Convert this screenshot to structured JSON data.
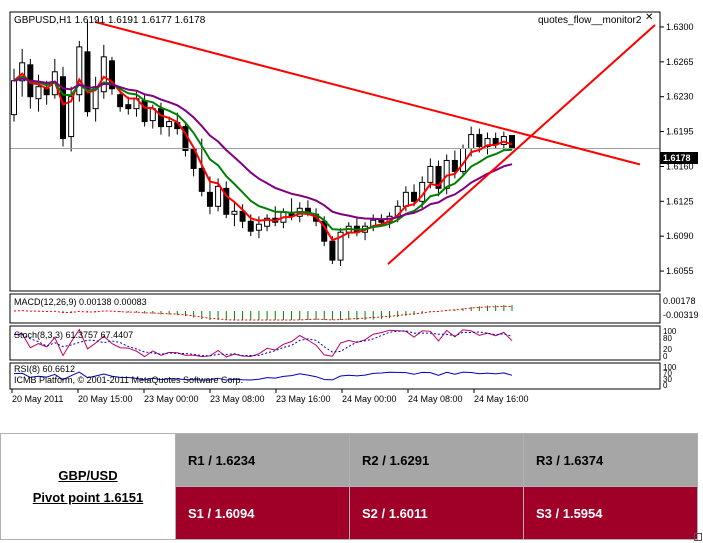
{
  "chart": {
    "header": "GBPUSD,H1  1.6191 1.6191 1.6177 1.6178",
    "indicator_label": "quotes_flow__monitor2",
    "close_icon": "close-icon",
    "current_price": "1.6178",
    "price_ticks": [
      "1.6300",
      "1.6265",
      "1.6230",
      "1.6195",
      "1.6160",
      "1.6125",
      "1.6090",
      "1.6055"
    ],
    "time_ticks": [
      "20 May 2011",
      "20 May 15:00",
      "23 May 00:00",
      "23 May 08:00",
      "23 May 16:00",
      "24 May 00:00",
      "24 May 08:00",
      "24 May 16:00"
    ],
    "macd_label": "MACD(12,26,9) 0.00138 0.00083",
    "macd_ticks": [
      "0.00178",
      "-0.00319"
    ],
    "stoch_label": "Stoch(8,3,3) 61.3757 67.4407",
    "stoch_ticks": [
      "100",
      "80",
      "20",
      "0"
    ],
    "rsi_label": "RSI(8) 60.6612",
    "rsi_ticks": [
      "100",
      "70",
      "30",
      "0"
    ],
    "copyright": "ICMB Platform, © 2001-2011 MetaQuotes Software Corp."
  },
  "chart_data": {
    "type": "candlestick",
    "title": "GBPUSD,H1",
    "ylim": [
      1.6035,
      1.6315
    ],
    "candles": [
      [
        1.6212,
        1.6258,
        1.6205,
        1.6246
      ],
      [
        1.6246,
        1.6278,
        1.623,
        1.6264
      ],
      [
        1.6262,
        1.6268,
        1.6218,
        1.623
      ],
      [
        1.6228,
        1.6252,
        1.6215,
        1.624
      ],
      [
        1.6238,
        1.6246,
        1.6222,
        1.6232
      ],
      [
        1.6232,
        1.6268,
        1.6228,
        1.6255
      ],
      [
        1.625,
        1.626,
        1.618,
        1.6188
      ],
      [
        1.619,
        1.624,
        1.6175,
        1.623
      ],
      [
        1.6232,
        1.6286,
        1.6225,
        1.628
      ],
      [
        1.6275,
        1.6306,
        1.621,
        1.6215
      ],
      [
        1.6218,
        1.625,
        1.6205,
        1.624
      ],
      [
        1.6235,
        1.6282,
        1.6228,
        1.627
      ],
      [
        1.6266,
        1.627,
        1.6232,
        1.6238
      ],
      [
        1.6232,
        1.6236,
        1.6215,
        1.622
      ],
      [
        1.6222,
        1.623,
        1.6212,
        1.6218
      ],
      [
        1.6218,
        1.6235,
        1.621,
        1.6228
      ],
      [
        1.6226,
        1.6232,
        1.62,
        1.6205
      ],
      [
        1.6206,
        1.6222,
        1.6198,
        1.6218
      ],
      [
        1.6218,
        1.6224,
        1.6192,
        1.62
      ],
      [
        1.62,
        1.621,
        1.619,
        1.6205
      ],
      [
        1.6204,
        1.6214,
        1.6192,
        1.6198
      ],
      [
        1.62,
        1.6204,
        1.617,
        1.6176
      ],
      [
        1.6178,
        1.618,
        1.615,
        1.6158
      ],
      [
        1.6158,
        1.6188,
        1.613,
        1.6135
      ],
      [
        1.6134,
        1.615,
        1.6112,
        1.612
      ],
      [
        1.612,
        1.6148,
        1.6115,
        1.614
      ],
      [
        1.6138,
        1.6145,
        1.6108,
        1.6112
      ],
      [
        1.6112,
        1.6125,
        1.61,
        1.6115
      ],
      [
        1.6115,
        1.6122,
        1.6098,
        1.6105
      ],
      [
        1.6105,
        1.6112,
        1.609,
        1.6095
      ],
      [
        1.6096,
        1.611,
        1.6088,
        1.6102
      ],
      [
        1.61,
        1.6112,
        1.6095,
        1.6108
      ],
      [
        1.6108,
        1.612,
        1.61,
        1.6104
      ],
      [
        1.6104,
        1.6118,
        1.6098,
        1.6114
      ],
      [
        1.6114,
        1.6128,
        1.6106,
        1.611
      ],
      [
        1.611,
        1.6124,
        1.6104,
        1.6118
      ],
      [
        1.6118,
        1.6126,
        1.611,
        1.6112
      ],
      [
        1.6112,
        1.6118,
        1.61,
        1.6105
      ],
      [
        1.6105,
        1.611,
        1.608,
        1.6085
      ],
      [
        1.6085,
        1.609,
        1.6062,
        1.6066
      ],
      [
        1.6066,
        1.6098,
        1.606,
        1.6094
      ],
      [
        1.6094,
        1.6104,
        1.6088,
        1.61
      ],
      [
        1.61,
        1.6108,
        1.609,
        1.6094
      ],
      [
        1.6094,
        1.6104,
        1.6086,
        1.61
      ],
      [
        1.61,
        1.6112,
        1.6095,
        1.6106
      ],
      [
        1.6106,
        1.6112,
        1.61,
        1.6104
      ],
      [
        1.6104,
        1.6114,
        1.6098,
        1.611
      ],
      [
        1.611,
        1.6126,
        1.6104,
        1.612
      ],
      [
        1.612,
        1.614,
        1.6115,
        1.6134
      ],
      [
        1.6134,
        1.6142,
        1.612,
        1.6125
      ],
      [
        1.6125,
        1.615,
        1.6118,
        1.6144
      ],
      [
        1.6144,
        1.6168,
        1.6138,
        1.616
      ],
      [
        1.616,
        1.6166,
        1.613,
        1.6138
      ],
      [
        1.6138,
        1.6172,
        1.6132,
        1.6166
      ],
      [
        1.6166,
        1.6176,
        1.6148,
        1.6155
      ],
      [
        1.6155,
        1.6182,
        1.615,
        1.6178
      ],
      [
        1.6178,
        1.62,
        1.617,
        1.6192
      ],
      [
        1.6192,
        1.6198,
        1.6174,
        1.618
      ],
      [
        1.618,
        1.6194,
        1.6172,
        1.6188
      ],
      [
        1.6188,
        1.6194,
        1.6178,
        1.6182
      ],
      [
        1.6182,
        1.6195,
        1.6176,
        1.619
      ],
      [
        1.6191,
        1.6191,
        1.6177,
        1.6178
      ]
    ],
    "trendlines": [
      {
        "name": "",
        "from": [
          1.6305,
          0
        ],
        "to": [
          1.6162,
          1
        ]
      },
      {
        "name": "",
        "from": [
          1.6062,
          0
        ],
        "to": [
          1.6302,
          1
        ]
      }
    ]
  },
  "pivots": {
    "pair": "GBP/USD",
    "pivot": "Pivot point 1.6151",
    "r1": "R1 / 1.6234",
    "r2": "R2 / 1.6291",
    "r3": "R3 / 1.6374",
    "s1": "S1 / 1.6094",
    "s2": "S2 / 1.6011",
    "s3": "S3 / 1.5954"
  }
}
